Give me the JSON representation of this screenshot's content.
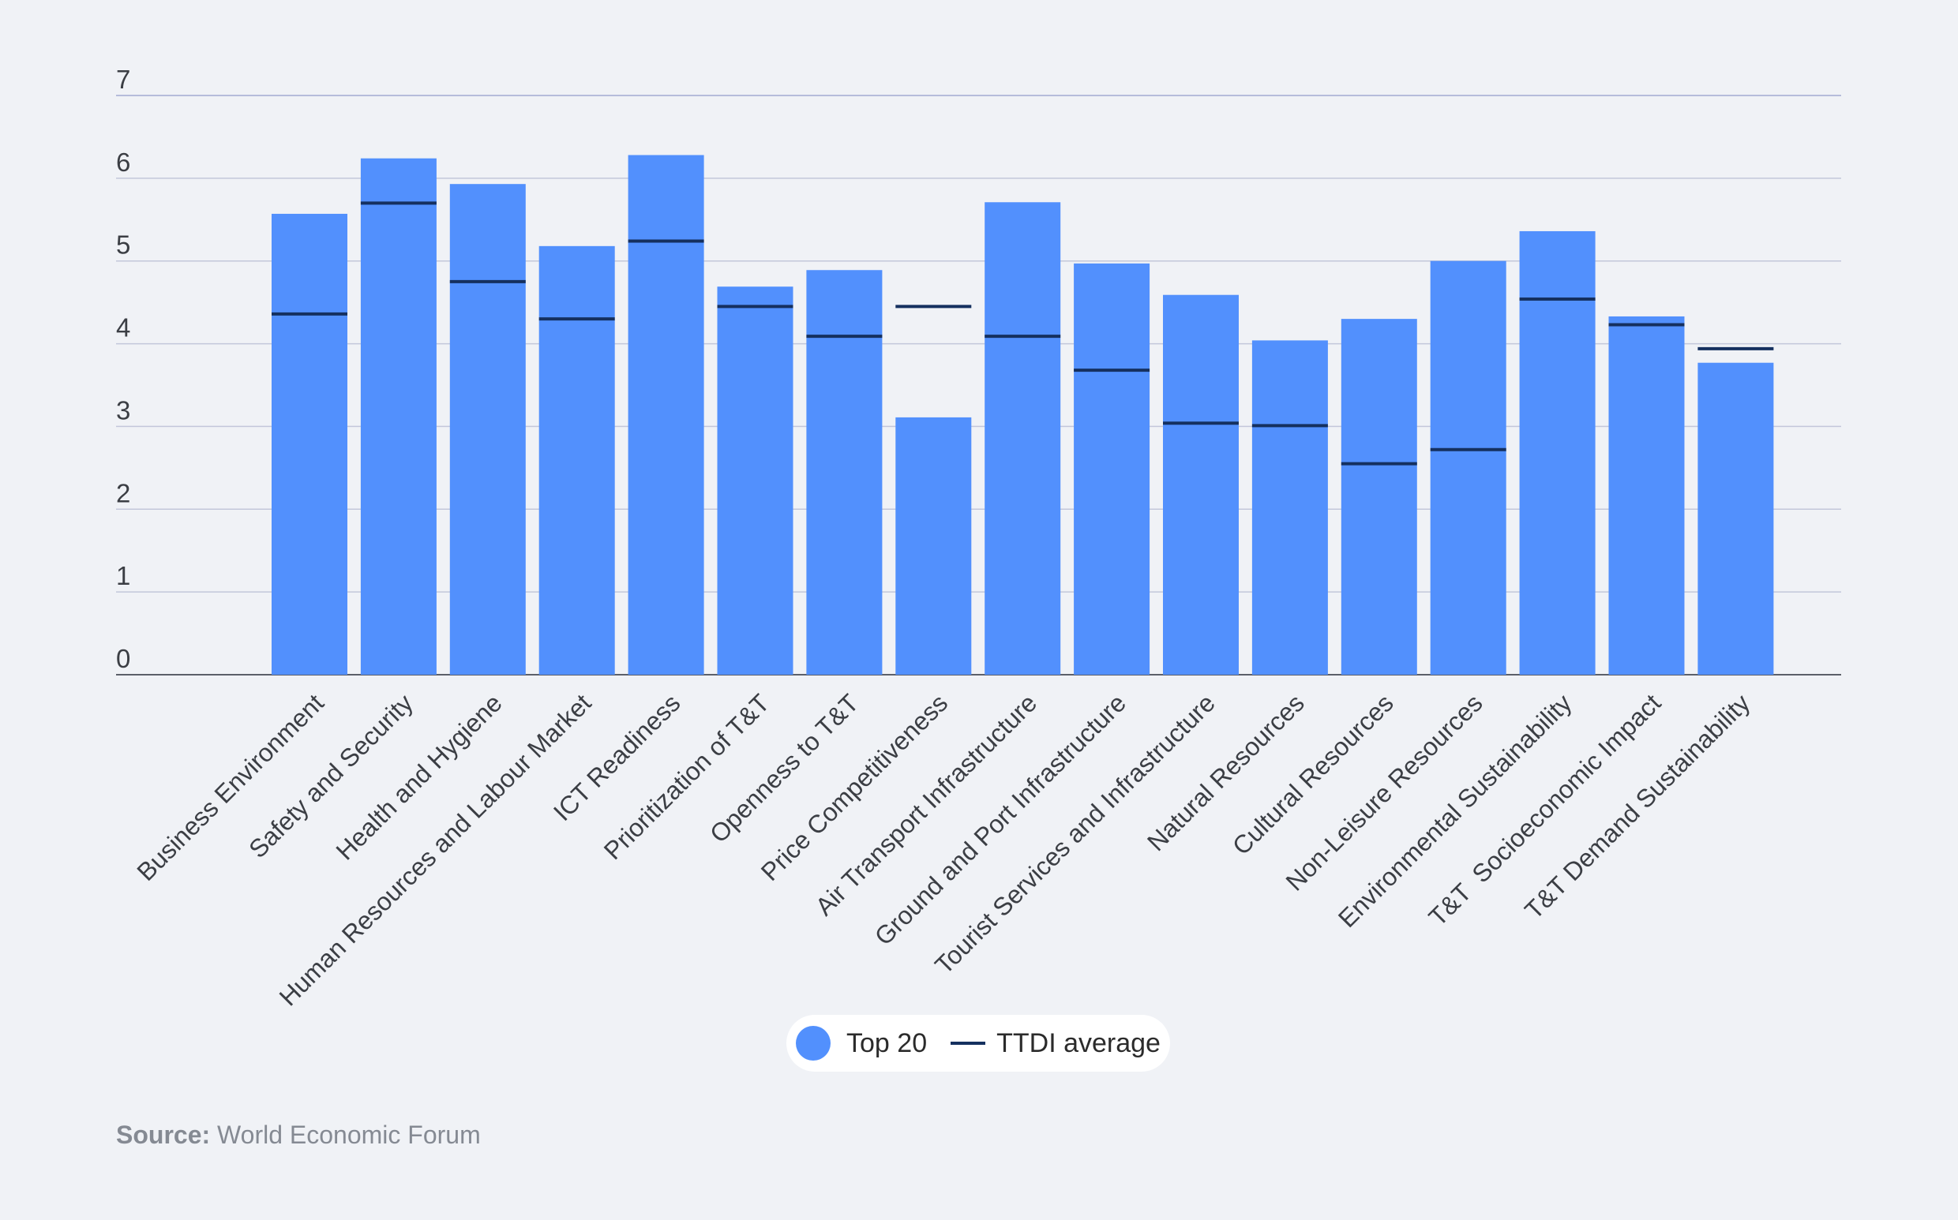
{
  "chart_data": {
    "type": "bar",
    "categories": [
      "Business Environment",
      "Safety and Security",
      "Health and Hygiene",
      "Human Resources and Labour Market",
      "ICT Readiness",
      "Prioritization of T&T",
      "Openness to T&T",
      "Price Competitiveness",
      "Air Transport Infrastructure",
      "Ground and Port Infrastructure",
      "Tourist Services and Infrastructure",
      "Natural Resources",
      "Cultural Resources",
      "Non-Leisure Resources",
      "Environmental Sustainability",
      "T&T  Socioeconomic Impact",
      "T&T Demand Sustainability"
    ],
    "series": [
      {
        "name": "Top 20",
        "mark": "bar",
        "values": [
          5.57,
          6.24,
          5.93,
          5.18,
          6.28,
          4.69,
          4.89,
          3.11,
          5.71,
          4.97,
          4.59,
          4.04,
          4.3,
          5.0,
          5.36,
          4.33,
          3.77
        ]
      },
      {
        "name": "TTDI average",
        "mark": "line-marker",
        "values": [
          4.36,
          5.7,
          4.75,
          4.3,
          5.24,
          4.45,
          4.09,
          4.45,
          4.09,
          3.68,
          3.04,
          3.01,
          2.55,
          2.72,
          4.54,
          4.23,
          3.94
        ]
      }
    ],
    "yticks": [
      0,
      1,
      2,
      3,
      4,
      5,
      6,
      7
    ],
    "ylim": [
      0,
      7
    ],
    "grid": true,
    "legend_position": "bottom-center",
    "colors": {
      "bar": "#5290fd",
      "marker": "#15305f",
      "grid": "#c3c7da",
      "top_grid": "#a3a9d2",
      "axis": "#5b5f69",
      "text": "#3b3e44"
    }
  },
  "legend": {
    "items": [
      {
        "label": "Top 20"
      },
      {
        "label": "TTDI average"
      }
    ]
  },
  "source": {
    "label": "Source:",
    "text": " World Economic Forum"
  }
}
